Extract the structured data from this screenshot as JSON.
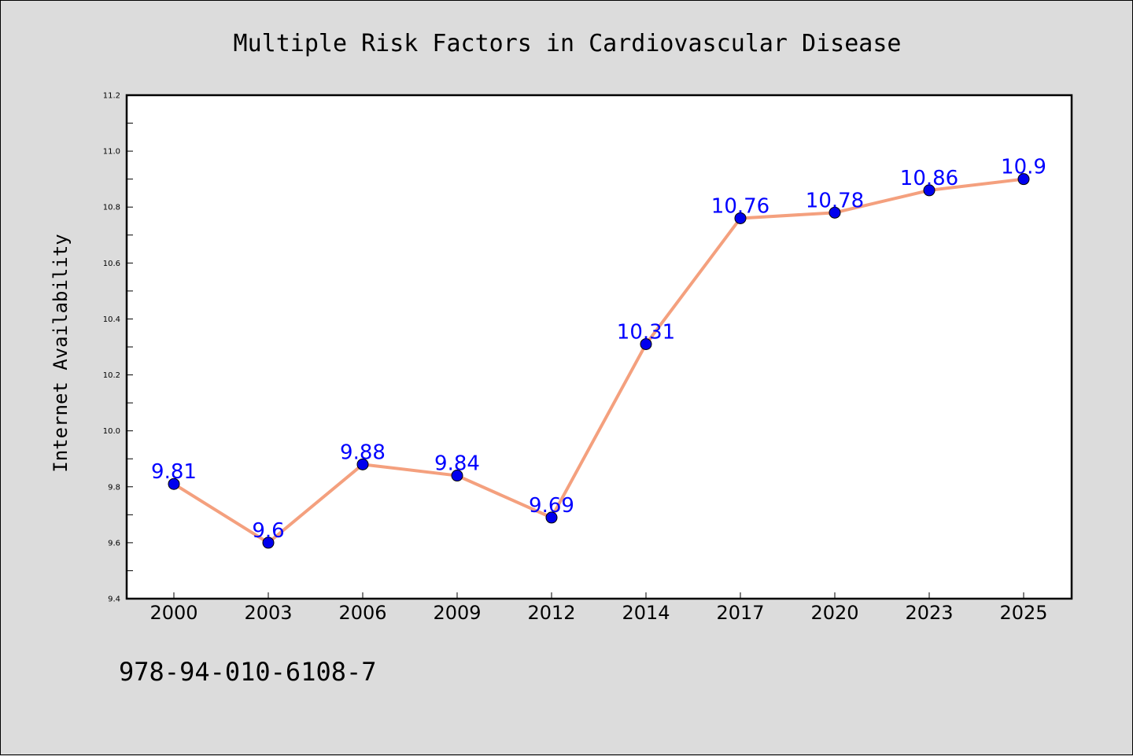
{
  "chart_data": {
    "type": "line",
    "title": "Multiple Risk Factors in Cardiovascular Disease",
    "xlabel": "",
    "ylabel": "Internet Availability",
    "categories": [
      "2000",
      "2003",
      "2006",
      "2009",
      "2012",
      "2014",
      "2017",
      "2020",
      "2023",
      "2025"
    ],
    "series": [
      {
        "values": [
          9.81,
          9.6,
          9.88,
          9.84,
          9.69,
          10.31,
          10.76,
          10.78,
          10.86,
          10.9
        ],
        "data_labels": [
          "9.81",
          "9.6",
          "9.88",
          "9.84",
          "9.69",
          "10.31",
          "10.76",
          "10.78",
          "10.86",
          "10.9"
        ]
      }
    ],
    "ylim": [
      9.4,
      11.2
    ],
    "yticks": [
      "9.4",
      "9.6",
      "9.8",
      "10.0",
      "10.2",
      "10.4",
      "10.6",
      "10.8",
      "11.0",
      "11.2"
    ],
    "grid": false,
    "legend": "none"
  },
  "footer": {
    "isbn": "978-94-010-6108-7"
  },
  "colors": {
    "background": "#dcdcdc",
    "plot_background": "#ffffff",
    "line": "#f4a07e",
    "marker": "#0000ee",
    "data_label": "#0000ff"
  }
}
